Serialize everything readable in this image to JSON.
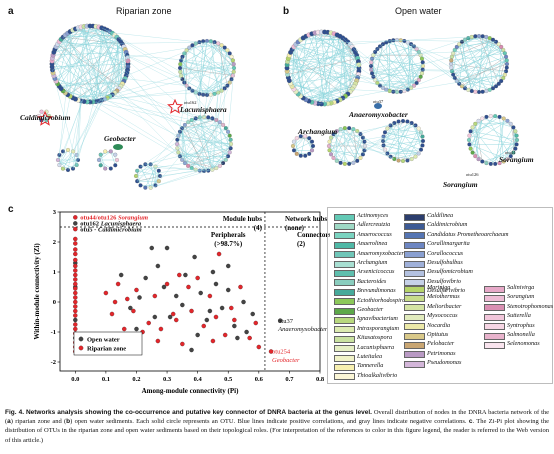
{
  "panel_a": {
    "label": "a",
    "title": "Riparian zone",
    "labels": {
      "lacunisphaera": "Lacunisphaera",
      "caldimicrobium": "Caldimicrobium",
      "geobacter": "Geobacter",
      "node_small": "otu162"
    }
  },
  "panel_b": {
    "label": "b",
    "title": "Open water",
    "labels": {
      "archangium": "Archangium",
      "anaeromyxobacter": "Anaeromyxobacter",
      "sorangium1": "Sorangium",
      "sorangium2": "Sorangium",
      "otu_a": "otu44",
      "otu_b": "otu126",
      "otu_c": "otu37"
    }
  },
  "panel_c": {
    "label": "c"
  },
  "colors": {
    "edge_pos": "#8fd6dc",
    "edge_neg": "#aaaaaa",
    "riparian": "#e3262b",
    "open_water": "#444444",
    "star": "#e3262b"
  },
  "chart_data": {
    "type": "scatter",
    "xlabel": "Among-module connectivity (Pi)",
    "ylabel": "Within-module connectivity (Zi)",
    "xlim": [
      -0.05,
      0.8
    ],
    "ylim": [
      -2.3,
      3.0
    ],
    "xticks": [
      "0.0",
      "0.1",
      "0.2",
      "0.3",
      "0.4",
      "0.5",
      "0.6",
      "0.7",
      "0.8"
    ],
    "yticks": [
      "-2",
      "-1",
      "0",
      "1",
      "2",
      "3"
    ],
    "thresholds": {
      "pi": 0.62,
      "zi": 2.5
    },
    "regions": {
      "module_hubs": {
        "title": "Module hubs",
        "count": "(4)"
      },
      "network_hubs": {
        "title": "Network hubs",
        "count": "(none)"
      },
      "peripherals": {
        "title": "Peripherals",
        "count": "(>98.7%)"
      },
      "connectors": {
        "title": "Connectors",
        "count": "(2)"
      }
    },
    "legend": [
      {
        "name": "Open water",
        "color": "#444444"
      },
      {
        "name": "Riparian zone",
        "color": "#e3262b"
      }
    ],
    "annotations": [
      {
        "id": "ann1",
        "parts": [
          {
            "t": "otu44/otu126 ",
            "c": "#e3262b",
            "i": false
          },
          {
            "t": "Sorangium",
            "c": "#e3262b",
            "i": true
          }
        ],
        "x": 0.0,
        "y": 2.82
      },
      {
        "id": "ann2",
        "parts": [
          {
            "t": "otu162 ",
            "c": "#111111",
            "i": false
          },
          {
            "t": "Lacunisphaera",
            "c": "#111111",
            "i": true
          }
        ],
        "x": 0.0,
        "y": 2.62
      },
      {
        "id": "ann3",
        "parts": [
          {
            "t": "otu5 - ",
            "c": "#111111",
            "i": false
          },
          {
            "t": "Caldimicrobium",
            "c": "#111111",
            "i": true
          }
        ],
        "x": 0.0,
        "y": 2.43
      },
      {
        "id": "ann4",
        "parts": [
          {
            "t": "otu37",
            "c": "#111111",
            "i": false
          }
        ],
        "x": 0.66,
        "y": -0.62
      },
      {
        "id": "ann5",
        "parts": [
          {
            "t": "Anaeromyxobacter",
            "c": "#111111",
            "i": true
          }
        ],
        "x": 0.66,
        "y": -0.9
      },
      {
        "id": "ann6",
        "parts": [
          {
            "t": "otu254",
            "c": "#e3262b",
            "i": false
          }
        ],
        "x": 0.64,
        "y": -1.65
      },
      {
        "id": "ann7",
        "parts": [
          {
            "t": "Geobacter",
            "c": "#e3262b",
            "i": true
          }
        ],
        "x": 0.64,
        "y": -1.93
      }
    ],
    "series": [
      {
        "name": "Open water",
        "color": "#444444",
        "points": [
          [
            0.18,
            -0.2
          ],
          [
            0.21,
            0.15
          ],
          [
            0.23,
            0.8
          ],
          [
            0.25,
            1.8
          ],
          [
            0.27,
            1.2
          ],
          [
            0.29,
            0.5
          ],
          [
            0.31,
            -0.5
          ],
          [
            0.33,
            0.2
          ],
          [
            0.36,
            0.9
          ],
          [
            0.39,
            1.5
          ],
          [
            0.41,
            0.3
          ],
          [
            0.43,
            -0.6
          ],
          [
            0.46,
            0.6
          ],
          [
            0.48,
            -0.2
          ],
          [
            0.5,
            1.2
          ],
          [
            0.52,
            -0.8
          ],
          [
            0.55,
            0.0
          ],
          [
            0.56,
            -1.0
          ],
          [
            0.58,
            -0.4
          ],
          [
            0.4,
            -1.1
          ],
          [
            0.15,
            0.9
          ],
          [
            0.2,
            -0.9
          ],
          [
            0.35,
            -0.1
          ],
          [
            0.45,
            1.0
          ],
          [
            0.38,
            -1.6
          ],
          [
            0.3,
            1.8
          ],
          [
            0.5,
            0.4
          ],
          [
            0.53,
            -1.2
          ],
          [
            0.26,
            -0.5
          ],
          [
            0.44,
            -0.3
          ],
          [
            0.67,
            -0.62
          ],
          [
            0.0,
            2.62
          ],
          [
            0.0,
            0.5
          ],
          [
            0.0,
            -1.2
          ],
          [
            0.0,
            -0.6
          ],
          [
            0.0,
            1.3
          ]
        ]
      },
      {
        "name": "Riparian zone",
        "color": "#e3262b",
        "points": [
          [
            0.0,
            2.82
          ],
          [
            0.0,
            2.43
          ],
          [
            0.0,
            2.1
          ],
          [
            0.0,
            1.95
          ],
          [
            0.0,
            1.75
          ],
          [
            0.0,
            1.6
          ],
          [
            0.0,
            1.4
          ],
          [
            0.0,
            1.2
          ],
          [
            0.0,
            1.05
          ],
          [
            0.0,
            0.9
          ],
          [
            0.0,
            0.75
          ],
          [
            0.0,
            0.6
          ],
          [
            0.0,
            0.45
          ],
          [
            0.0,
            0.3
          ],
          [
            0.0,
            0.15
          ],
          [
            0.0,
            0.0
          ],
          [
            0.0,
            -0.15
          ],
          [
            0.0,
            -0.3
          ],
          [
            0.0,
            -0.45
          ],
          [
            0.0,
            -0.75
          ],
          [
            0.0,
            -0.9
          ],
          [
            0.0,
            -1.05
          ],
          [
            0.0,
            -1.35
          ],
          [
            0.0,
            -1.5
          ],
          [
            0.0,
            -1.65
          ],
          [
            0.1,
            0.3
          ],
          [
            0.12,
            -0.4
          ],
          [
            0.14,
            0.6
          ],
          [
            0.16,
            -0.9
          ],
          [
            0.17,
            0.1
          ],
          [
            0.19,
            -0.3
          ],
          [
            0.2,
            0.4
          ],
          [
            0.22,
            -1.0
          ],
          [
            0.24,
            -0.7
          ],
          [
            0.26,
            0.2
          ],
          [
            0.28,
            -0.9
          ],
          [
            0.3,
            0.6
          ],
          [
            0.32,
            -0.4
          ],
          [
            0.34,
            0.9
          ],
          [
            0.35,
            -1.4
          ],
          [
            0.37,
            0.5
          ],
          [
            0.38,
            -0.3
          ],
          [
            0.4,
            0.8
          ],
          [
            0.42,
            -0.8
          ],
          [
            0.44,
            0.2
          ],
          [
            0.46,
            -0.5
          ],
          [
            0.47,
            1.6
          ],
          [
            0.49,
            -1.1
          ],
          [
            0.51,
            -0.2
          ],
          [
            0.54,
            0.5
          ],
          [
            0.57,
            -1.2
          ],
          [
            0.59,
            -0.7
          ],
          [
            0.6,
            -1.5
          ],
          [
            0.27,
            -1.3
          ],
          [
            0.13,
            0.0
          ],
          [
            0.33,
            -0.6
          ],
          [
            0.45,
            -1.3
          ],
          [
            0.52,
            -0.6
          ],
          [
            0.64,
            -1.65
          ]
        ]
      }
    ]
  },
  "genera_legend": [
    {
      "name": "Actinomyces",
      "color": "#63c9b5"
    },
    {
      "name": "Adlercreutzia",
      "color": "#9fd9c5"
    },
    {
      "name": "Anaerococcus",
      "color": "#7ad3c0"
    },
    {
      "name": "Anaerolinea",
      "color": "#4fb8a6"
    },
    {
      "name": "Anaeromyxobacter",
      "color": "#6fc6b8"
    },
    {
      "name": "Archangium",
      "color": "#a8dfd2"
    },
    {
      "name": "Arsenicicoccus",
      "color": "#5fbfae"
    },
    {
      "name": "Bacteroides",
      "color": "#8acdbe"
    },
    {
      "name": "Brevundimonas",
      "color": "#46a99a"
    },
    {
      "name": "Ectothiorhodospira",
      "color": "#8cc85a"
    },
    {
      "name": "Geobacter",
      "color": "#5da84a"
    },
    {
      "name": "Ignavibacterium",
      "color": "#b8d87e"
    },
    {
      "name": "Intrasporangium",
      "color": "#dcebb0"
    },
    {
      "name": "Kitasatospora",
      "color": "#c9e2a0"
    },
    {
      "name": "Lacunisphaera",
      "color": "#e5efc4"
    },
    {
      "name": "Luteitalea",
      "color": "#f1f3c8"
    },
    {
      "name": "Tannerella",
      "color": "#f7f0b0"
    },
    {
      "name": "Thioalkalivibrio",
      "color": "#fbf6d6"
    },
    {
      "name": "Caldilinea",
      "color": "#2c3e6d"
    },
    {
      "name": "Caldimicrobium",
      "color": "#3d5a94"
    },
    {
      "name": "Candidatus Prometheoarchaeum",
      "color": "#5575b3"
    },
    {
      "name": "Corallimargarita",
      "color": "#6d86c2"
    },
    {
      "name": "Corallococcus",
      "color": "#8aa0d1"
    },
    {
      "name": "Desulfobulbus",
      "color": "#9fb0d9"
    },
    {
      "name": "Desulfomicrobium",
      "color": "#b3c1e0"
    },
    {
      "name": "Desulfovibrio",
      "color": "#c6d1e8"
    },
    {
      "name": "Desulfurivibrio",
      "color": "#d7def0"
    },
    {
      "name": "Mariniga",
      "color": "#b5d46a"
    },
    {
      "name": "Meiothermus",
      "color": "#c7dc8a"
    },
    {
      "name": "Melioribacter",
      "color": "#d4e4a3"
    },
    {
      "name": "Myxococcus",
      "color": "#e1ebbd"
    },
    {
      "name": "Nocardia",
      "color": "#ece9a8"
    },
    {
      "name": "Opitutus",
      "color": "#d9c98a"
    },
    {
      "name": "Pelobacter",
      "color": "#c9a673"
    },
    {
      "name": "Petrimonas",
      "color": "#b99ac4"
    },
    {
      "name": "Pseudomonas",
      "color": "#d3b6d9"
    },
    {
      "name": "Salinivirga",
      "color": "#e7a9c8"
    },
    {
      "name": "Sorangium",
      "color": "#eebdd6"
    },
    {
      "name": "Stenotrophomonas",
      "color": "#d98fb2"
    },
    {
      "name": "Sutterella",
      "color": "#f1c6da"
    },
    {
      "name": "Syntrophus",
      "color": "#f6d6e4"
    },
    {
      "name": "Salmonella",
      "color": "#e8b3cc"
    },
    {
      "name": "Selenomonas",
      "color": "#f9e4ee"
    }
  ],
  "caption": {
    "fig_label": "Fig. 4.",
    "fig_title": "Networks analysis showing the co-occurrence and putative key connector of DNRA bacteria at the genus level.",
    "text_1": " Overall distribution of nodes in the DNRA bacteria network of the (",
    "a": "a",
    "text_2": ") riparian zone and (",
    "b": "b",
    "text_3": ") open water sediments. Each solid circle represents an OTU. Blue lines indicate positive correlations, and gray lines indicate negative correlations. ",
    "c": "c",
    "text_4": ". The Zi-Pi plot showing the distribution of OTUs in the riparian zone and open water sediments based on their topological roles. (For interpretation of the references to color in this figure legend, the reader is referred to the Web version of this article.)"
  }
}
